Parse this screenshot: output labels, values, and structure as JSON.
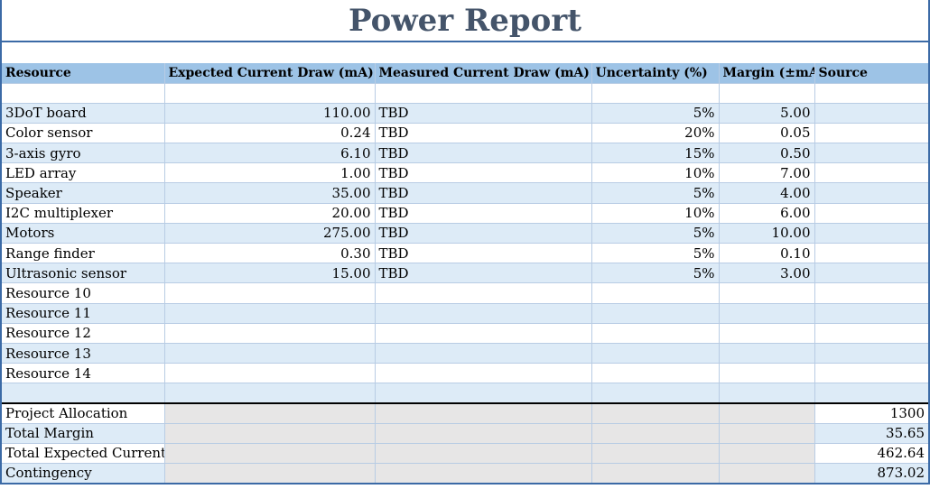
{
  "title": "Power Report",
  "headers": [
    "Resource",
    "Expected Current Draw (mA)",
    "Measured Current Draw (mA)",
    "Uncertainty (%)",
    "Margin (±mA)",
    "Source"
  ],
  "rows": [
    [
      "",
      "",
      "",
      "",
      "",
      ""
    ],
    [
      "3DoT board",
      "110.00",
      "TBD",
      "5%",
      "5.00",
      ""
    ],
    [
      "Color sensor",
      "0.24",
      "TBD",
      "20%",
      "0.05",
      ""
    ],
    [
      "3-axis gyro",
      "6.10",
      "TBD",
      "15%",
      "0.50",
      ""
    ],
    [
      "LED array",
      "1.00",
      "TBD",
      "10%",
      "7.00",
      ""
    ],
    [
      "Speaker",
      "35.00",
      "TBD",
      "5%",
      "4.00",
      ""
    ],
    [
      "I2C multiplexer",
      "20.00",
      "TBD",
      "10%",
      "6.00",
      ""
    ],
    [
      "Motors",
      "275.00",
      "TBD",
      "5%",
      "10.00",
      ""
    ],
    [
      "Range finder",
      "0.30",
      "TBD",
      "5%",
      "0.10",
      ""
    ],
    [
      "Ultrasonic sensor",
      "15.00",
      "TBD",
      "5%",
      "3.00",
      ""
    ],
    [
      "Resource 10",
      "",
      "",
      "",
      "",
      ""
    ],
    [
      "Resource 11",
      "",
      "",
      "",
      "",
      ""
    ],
    [
      "Resource 12",
      "",
      "",
      "",
      "",
      ""
    ],
    [
      "Resource 13",
      "",
      "",
      "",
      "",
      ""
    ],
    [
      "Resource 14",
      "",
      "",
      "",
      "",
      ""
    ],
    [
      "",
      "",
      "",
      "",
      "",
      ""
    ]
  ],
  "summary": [
    [
      "Project Allocation",
      "1300"
    ],
    [
      "Total Margin",
      "35.65"
    ],
    [
      "Total Expected Current",
      "462.64"
    ],
    [
      "Contingency",
      "873.02"
    ]
  ]
}
